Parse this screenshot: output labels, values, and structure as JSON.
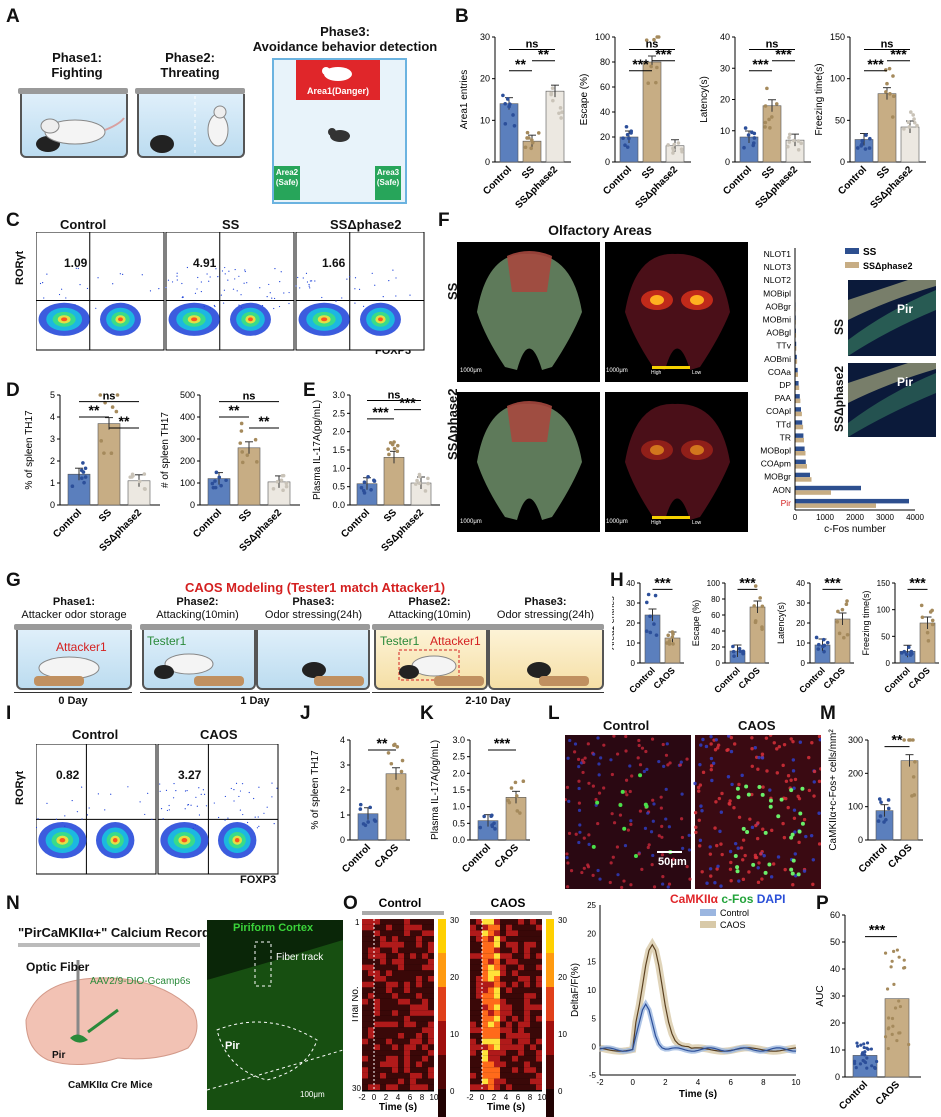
{
  "panels": {
    "A": "A",
    "B": "B",
    "C": "C",
    "D": "D",
    "E": "E",
    "F": "F",
    "G": "G",
    "H": "H",
    "I": "I",
    "J": "J",
    "K": "K",
    "L": "L",
    "M": "M",
    "N": "N",
    "O": "O",
    "P": "P"
  },
  "colors": {
    "control": "#5b7fbd",
    "ss": "#c7ad84",
    "ssd": "#ece8e1",
    "red": "#d42020",
    "green": "#2a8a3a",
    "caos": "#c7ad84"
  },
  "A": {
    "phase1_title": "Phase1:",
    "phase1_sub": "Fighting",
    "phase2_title": "Phase2:",
    "phase2_sub": "Threating",
    "phase3_title": "Phase3:",
    "phase3_sub": "Avoidance behavior detection",
    "area1": "Area1(Danger)",
    "area2": "Area2",
    "area2_sub": "(Safe)",
    "area3": "Area3",
    "area3_sub": "(Safe)"
  },
  "B": {
    "groups": [
      "Control",
      "SS",
      "SSΔphase2"
    ],
    "stats": [
      "ns",
      "**",
      "**",
      "ns",
      "***",
      "***",
      "ns",
      "***",
      "***",
      "ns",
      "***",
      "***"
    ],
    "charts": [
      {
        "ylabel": "Area1 entries",
        "ticks": [
          "0",
          "10",
          "20",
          "30"
        ],
        "ymax": 30,
        "values": [
          14,
          5,
          17
        ]
      },
      {
        "ylabel": "Escape (%)",
        "ticks": [
          "0",
          "20",
          "40",
          "60",
          "80",
          "100"
        ],
        "ymax": 100,
        "values": [
          20,
          80,
          13
        ]
      },
      {
        "ylabel": "Latency(s)",
        "ticks": [
          "0",
          "10",
          "20",
          "30",
          "40"
        ],
        "ymax": 40,
        "values": [
          8,
          18,
          7
        ]
      },
      {
        "ylabel": "Freezing time(s)",
        "ticks": [
          "0",
          "50",
          "100",
          "150"
        ],
        "ymax": 150,
        "values": [
          27,
          82,
          42
        ]
      }
    ]
  },
  "C": {
    "groups": [
      "Control",
      "SS",
      "SSΔphase2"
    ],
    "values": [
      "1.09",
      "4.91",
      "1.66"
    ],
    "ylabel": "RORγt",
    "xlabel": "FOXP3"
  },
  "D": {
    "chart1": {
      "ylabel": "% of spleen TH17",
      "ticks": [
        "0",
        "1",
        "2",
        "3",
        "4",
        "5"
      ],
      "ymax": 5,
      "values": [
        1.4,
        3.7,
        1.1
      ]
    },
    "chart2": {
      "ylabel": "# of spleen TH17",
      "ticks": [
        "0",
        "100",
        "200",
        "300",
        "400",
        "500"
      ],
      "ymax": 500,
      "values": [
        120,
        260,
        105
      ]
    },
    "stats": [
      "ns",
      "**",
      "**",
      "ns",
      "**",
      "**"
    ],
    "groups": [
      "Control",
      "SS",
      "SSΔphase2"
    ]
  },
  "E": {
    "ylabel": "Plasma IL-17A(pg/mL)",
    "ticks": [
      "0.0",
      "0.5",
      "1.0",
      "1.5",
      "2.0",
      "2.5",
      "3.0"
    ],
    "ymax": 3,
    "values": [
      0.58,
      1.3,
      0.6
    ],
    "stats": [
      "ns",
      "***",
      "***"
    ],
    "groups": [
      "Control",
      "SS",
      "SSΔphase2"
    ]
  },
  "F": {
    "title": "Olfactory Areas",
    "row1": "SS",
    "row2": "SSΔphase2",
    "scale": "1000μm",
    "high": "High",
    "low": "Low",
    "legend": [
      "SS",
      "SSΔphase2"
    ],
    "regions": [
      "NLOT1",
      "NLOT3",
      "NLOT2",
      "MOBipl",
      "AOBgr",
      "MOBmi",
      "AOBgl",
      "TTv",
      "AOBmi",
      "COAa",
      "DP",
      "PAA",
      "COApl",
      "TTd",
      "TR",
      "MOBopl",
      "COApm",
      "MOBgr",
      "AON",
      "Pir"
    ],
    "ss": [
      8,
      10,
      12,
      15,
      20,
      25,
      30,
      40,
      60,
      90,
      120,
      160,
      200,
      240,
      280,
      320,
      360,
      500,
      2200,
      3800
    ],
    "ssd": [
      10,
      12,
      15,
      18,
      22,
      28,
      35,
      45,
      70,
      100,
      140,
      180,
      230,
      270,
      300,
      350,
      400,
      550,
      1200,
      2700
    ],
    "xticks": [
      "0",
      "1000",
      "2000",
      "3000",
      "4000"
    ],
    "xmax": 4000,
    "xlabel": "c-Fos number",
    "inset1": "SS",
    "inset2": "SSΔphase2",
    "pir": "Pir"
  },
  "G": {
    "title": "CAOS Modeling (Tester1 match Attacker1)",
    "p1_title": "Phase1:",
    "p1_sub": "Attacker odor storage",
    "p2_title": "Phase2:",
    "p2_sub": "Attacking(10min)",
    "p3_title": "Phase3:",
    "p3_sub": "Odor stressing(24h)",
    "attacker": "Attacker1",
    "tester": "Tester1",
    "d0": "0 Day",
    "d1": "1 Day",
    "d2": "2-10 Day"
  },
  "H": {
    "groups": [
      "Control",
      "CAOS"
    ],
    "charts": [
      {
        "ylabel": "Area1 entries",
        "ticks": [
          "0",
          "10",
          "20",
          "30",
          "40"
        ],
        "ymax": 40,
        "values": [
          24,
          12.5
        ]
      },
      {
        "ylabel": "Escape (%)",
        "ticks": [
          "0",
          "20",
          "40",
          "60",
          "80",
          "100"
        ],
        "ymax": 100,
        "values": [
          15,
          70
        ]
      },
      {
        "ylabel": "Latency(s)",
        "ticks": [
          "0",
          "10",
          "20",
          "30",
          "40"
        ],
        "ymax": 40,
        "values": [
          9,
          22
        ]
      },
      {
        "ylabel": "Freezing time(s)",
        "ticks": [
          "0",
          "50",
          "100",
          "150"
        ],
        "ymax": 150,
        "values": [
          22,
          75
        ]
      }
    ],
    "star": "***"
  },
  "I": {
    "groups": [
      "Control",
      "CAOS"
    ],
    "values": [
      "0.82",
      "3.27"
    ],
    "ylabel": "RORγt",
    "xlabel": "FOXP3"
  },
  "J": {
    "ylabel": "% of spleen TH17",
    "ticks": [
      "0",
      "1",
      "2",
      "3",
      "4"
    ],
    "ymax": 4,
    "values": [
      1.05,
      2.65
    ],
    "stat": "**",
    "groups": [
      "Control",
      "CAOS"
    ]
  },
  "K": {
    "ylabel": "Plasma IL-17A(pg/mL)",
    "ticks": [
      "0.0",
      "0.5",
      "1.0",
      "1.5",
      "2.0",
      "2.5",
      "3.0"
    ],
    "ymax": 3,
    "values": [
      0.58,
      1.28
    ],
    "stat": "***",
    "groups": [
      "Control",
      "CAOS"
    ]
  },
  "L": {
    "groups": [
      "Control",
      "CAOS"
    ],
    "scale": "50μm",
    "stain1": "CaMKIIα",
    "stain2": "c-Fos",
    "stain3": "DAPI"
  },
  "M": {
    "ylabel": "CaMKIIα+c-Fos+ cells/mm²",
    "ticks": [
      "0",
      "100",
      "200",
      "300"
    ],
    "ymax": 300,
    "values": [
      88,
      238
    ],
    "stat": "**",
    "groups": [
      "Control",
      "CAOS"
    ]
  },
  "N": {
    "title": "\"PirCaMKIIα+\" Calcium Recording",
    "fiber": "Optic Fiber",
    "virus": "AAV2/9-DIO-Gcamp6s",
    "pir": "Pir",
    "mice": "CaMKIIα Cre Mice",
    "img_title": "Piriform Cortex",
    "track": "Fiber track",
    "img_pir": "Pir",
    "scale": "100μm"
  },
  "O": {
    "groups": [
      "Control",
      "CAOS"
    ],
    "ylabel": "Trial No.",
    "xlabel": "Time (s)",
    "xticks": [
      "-2",
      "0",
      "2",
      "4",
      "6",
      "8",
      "10"
    ],
    "yticks": [
      "1",
      "30"
    ],
    "cbar": [
      "0",
      "10",
      "20",
      "30"
    ],
    "trace_ylabel": "DeltaF/F(%)",
    "trace_xlabel": "Time (s)",
    "trace_yticks": [
      "-5",
      "0",
      "5",
      "10",
      "15",
      "20",
      "25"
    ],
    "legend": [
      "Control",
      "CAOS"
    ]
  },
  "P": {
    "ylabel": "AUC",
    "ticks": [
      "0",
      "10",
      "20",
      "30",
      "40",
      "50",
      "60"
    ],
    "ymax": 60,
    "values": [
      8,
      29
    ],
    "stat": "***",
    "groups": [
      "Control",
      "CAOS"
    ]
  }
}
